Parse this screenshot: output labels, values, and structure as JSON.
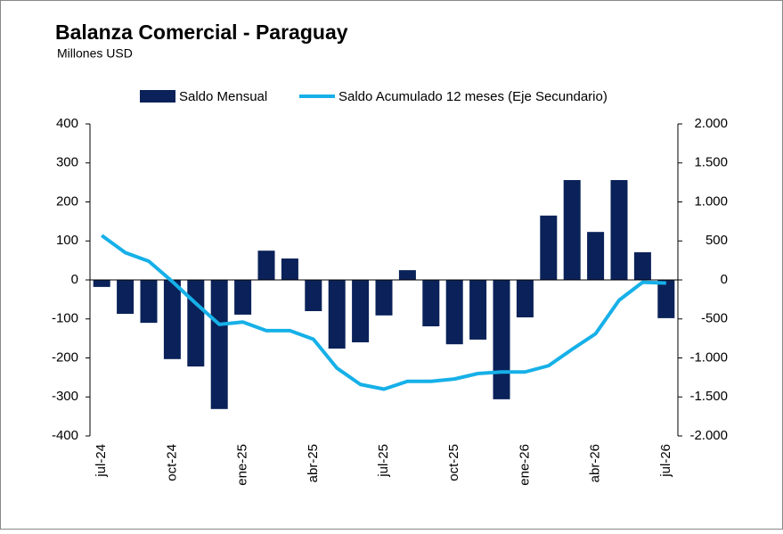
{
  "chart_data": {
    "type": "bar",
    "title": "Balanza Comercial - Paraguay",
    "subtitle": "Millones USD",
    "categories": [
      "jul-24",
      null,
      null,
      "oct-24",
      null,
      null,
      "ene-25",
      null,
      null,
      "abr-25",
      null,
      null,
      "jul-25",
      null,
      null,
      "oct-25",
      null,
      null,
      "ene-26",
      null,
      null,
      "abr-26",
      null,
      null,
      "jul-26"
    ],
    "series": [
      {
        "name": "Saldo Mensual",
        "type": "bar",
        "color": "#0a2259",
        "values": [
          -18,
          -87,
          -110,
          -203,
          -222,
          -331,
          -89,
          75,
          55,
          -80,
          -176,
          -160,
          -91,
          25,
          -119,
          -165,
          -153,
          -306,
          -96,
          165,
          256,
          123,
          256,
          71,
          -98
        ]
      },
      {
        "name": "Saldo Acumulado 12 meses (Eje Secundario)",
        "type": "line",
        "axis": "y2",
        "color": "#16b0e8",
        "values": [
          570,
          350,
          240,
          -20,
          -300,
          -570,
          -540,
          -650,
          -650,
          -760,
          -1130,
          -1340,
          -1400,
          -1300,
          -1300,
          -1270,
          -1200,
          -1180,
          -1180,
          -1100,
          -890,
          -690,
          -260,
          -30,
          -40
        ]
      }
    ],
    "ylim": [
      -400,
      400
    ],
    "yticks": [
      -400,
      -300,
      -200,
      -100,
      0,
      100,
      200,
      300,
      400
    ],
    "y2lim": [
      -2000,
      2000
    ],
    "y2ticks": [
      {
        "value": -2000,
        "label": "-2.000"
      },
      {
        "value": -1500,
        "label": "-1.500"
      },
      {
        "value": -1000,
        "label": "-1.000"
      },
      -500,
      0,
      500,
      {
        "value": 1000,
        "label": "1.000"
      },
      {
        "value": 1500,
        "label": "1.500"
      },
      {
        "value": 2000,
        "label": "2.000"
      }
    ],
    "legend": "top"
  }
}
